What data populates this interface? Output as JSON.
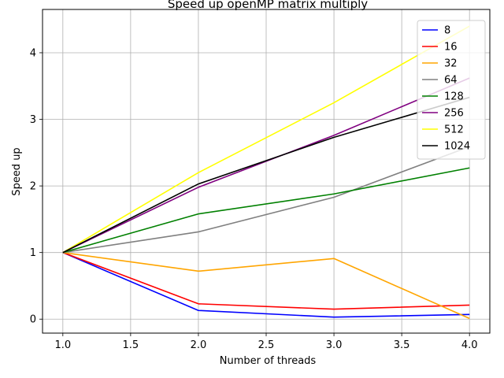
{
  "chart_data": {
    "type": "line",
    "title": "Speed up openMP matrix multiply",
    "xlabel": "Number of threads",
    "ylabel": "Speed up",
    "x": [
      1.0,
      2.0,
      3.0,
      4.0
    ],
    "xlim": [
      0.85,
      4.15
    ],
    "ylim": [
      -0.21,
      4.65
    ],
    "xticks": [
      1.0,
      1.5,
      2.0,
      2.5,
      3.0,
      3.5,
      4.0
    ],
    "xtick_labels": [
      "1.0",
      "1.5",
      "2.0",
      "2.5",
      "3.0",
      "3.5",
      "4.0"
    ],
    "yticks": [
      0,
      1,
      2,
      3,
      4
    ],
    "ytick_labels": [
      "0",
      "1",
      "2",
      "3",
      "4"
    ],
    "grid": true,
    "legend_position": "top-right",
    "series": [
      {
        "name": "8",
        "color": "#0000ff",
        "values": [
          1.0,
          0.13,
          0.03,
          0.07
        ]
      },
      {
        "name": "16",
        "color": "#ff0000",
        "values": [
          1.0,
          0.23,
          0.15,
          0.21
        ]
      },
      {
        "name": "32",
        "color": "#ffa500",
        "values": [
          1.0,
          0.72,
          0.91,
          0.01
        ]
      },
      {
        "name": "64",
        "color": "#808080",
        "values": [
          1.0,
          1.31,
          1.83,
          2.59
        ]
      },
      {
        "name": "128",
        "color": "#008000",
        "values": [
          1.0,
          1.58,
          1.88,
          2.27
        ]
      },
      {
        "name": "256",
        "color": "#800080",
        "values": [
          1.0,
          1.98,
          2.76,
          3.62
        ]
      },
      {
        "name": "512",
        "color": "#ffff00",
        "values": [
          1.0,
          2.2,
          3.25,
          4.4
        ]
      },
      {
        "name": "1024",
        "color": "#000000",
        "values": [
          1.0,
          2.03,
          2.73,
          3.33
        ]
      }
    ]
  }
}
